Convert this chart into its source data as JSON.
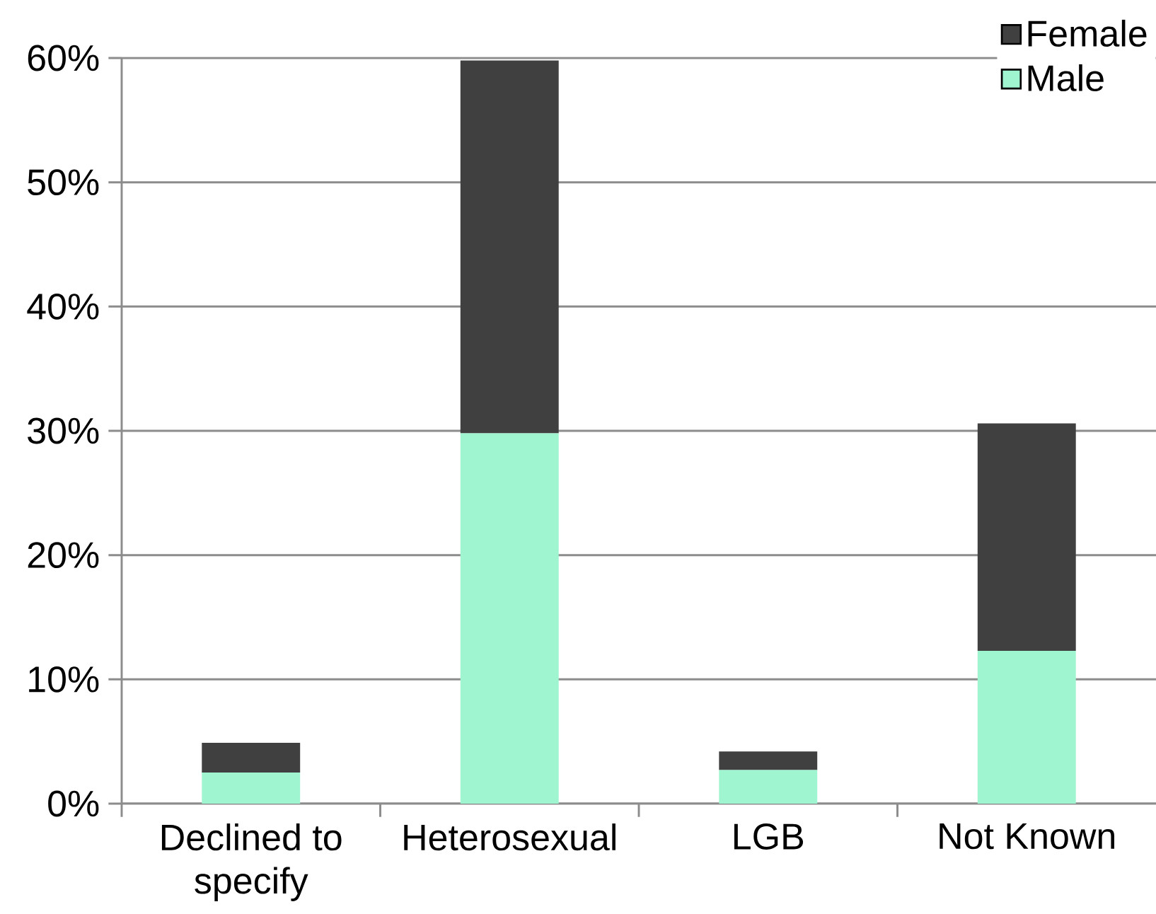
{
  "chart_data": {
    "type": "bar",
    "stacked": true,
    "categories": [
      "Declined to specify",
      "Heterosexual",
      "LGB",
      "Not Known"
    ],
    "series": [
      {
        "name": "Male",
        "color": "#9ef5cf",
        "values": [
          2.5,
          29.8,
          2.7,
          12.3
        ]
      },
      {
        "name": "Female",
        "color": "#404040",
        "values": [
          2.4,
          30.0,
          1.5,
          18.3
        ]
      }
    ],
    "ylim": [
      0,
      60
    ],
    "yticks": [
      {
        "value": 0,
        "label": "0%"
      },
      {
        "value": 10,
        "label": "10%"
      },
      {
        "value": 20,
        "label": "20%"
      },
      {
        "value": 30,
        "label": "30%"
      },
      {
        "value": 40,
        "label": "40%"
      },
      {
        "value": 50,
        "label": "50%"
      },
      {
        "value": 60,
        "label": "60%"
      }
    ],
    "grid": "y",
    "legend": "top right"
  }
}
